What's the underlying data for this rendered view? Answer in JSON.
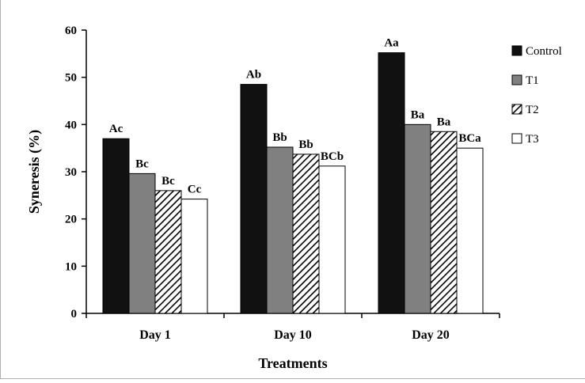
{
  "chart_data": {
    "type": "bar",
    "xlabel": "Treatments",
    "ylabel": "Syneresis (%)",
    "ylim": [
      0,
      60
    ],
    "yticks": [
      0,
      10,
      20,
      30,
      40,
      50,
      60
    ],
    "grid": false,
    "legend_position": "right",
    "categories": [
      "Day 1",
      "Day 10",
      "Day 20"
    ],
    "series": [
      {
        "name": "Control",
        "values": [
          37,
          48.5,
          55.2
        ],
        "labels": [
          "Ac",
          "Ab",
          "Aa"
        ],
        "color": "#111111",
        "pattern": "solid"
      },
      {
        "name": "T1",
        "values": [
          29.6,
          35.2,
          40
        ],
        "labels": [
          "Bc",
          "Bb",
          "Ba"
        ],
        "color": "#808080",
        "pattern": "solid"
      },
      {
        "name": "T2",
        "values": [
          26,
          33.7,
          38.5
        ],
        "labels": [
          "Bc",
          "Bb",
          "Ba"
        ],
        "color": "#000000",
        "pattern": "diagonal-hatch"
      },
      {
        "name": "T3",
        "values": [
          24.2,
          31.2,
          35
        ],
        "labels": [
          "Cc",
          "BCb",
          "BCa"
        ],
        "color": "#ffffff",
        "pattern": "solid"
      }
    ]
  }
}
